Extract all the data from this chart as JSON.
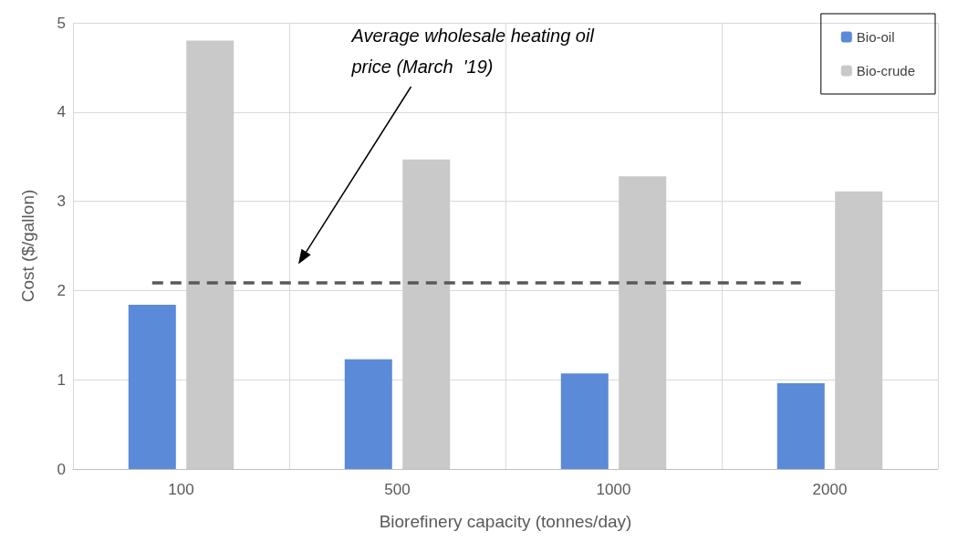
{
  "chart_data": {
    "type": "bar",
    "xlabel": "Biorefinery capacity (tonnes/day)",
    "ylabel": "Cost ($/gallon)",
    "categories": [
      "100",
      "500",
      "1000",
      "2000"
    ],
    "series": [
      {
        "name": "Bio-oil",
        "color": "#5a8ad8",
        "values": [
          1.84,
          1.23,
          1.07,
          0.96
        ]
      },
      {
        "name": "Bio-crude",
        "color": "#c9c9c9",
        "values": [
          4.8,
          3.47,
          3.28,
          3.11
        ]
      }
    ],
    "ylim": [
      0,
      5
    ],
    "yticks": [
      0,
      1,
      2,
      3,
      4,
      5
    ],
    "grid": true,
    "legend": "top right",
    "ref_lines": [
      {
        "axis": "y",
        "value": 2.09,
        "label": null,
        "color": "#595959",
        "line_style": "dashed"
      }
    ],
    "annotations": [
      "Average wholesale heating oil price (March  '19)"
    ]
  }
}
